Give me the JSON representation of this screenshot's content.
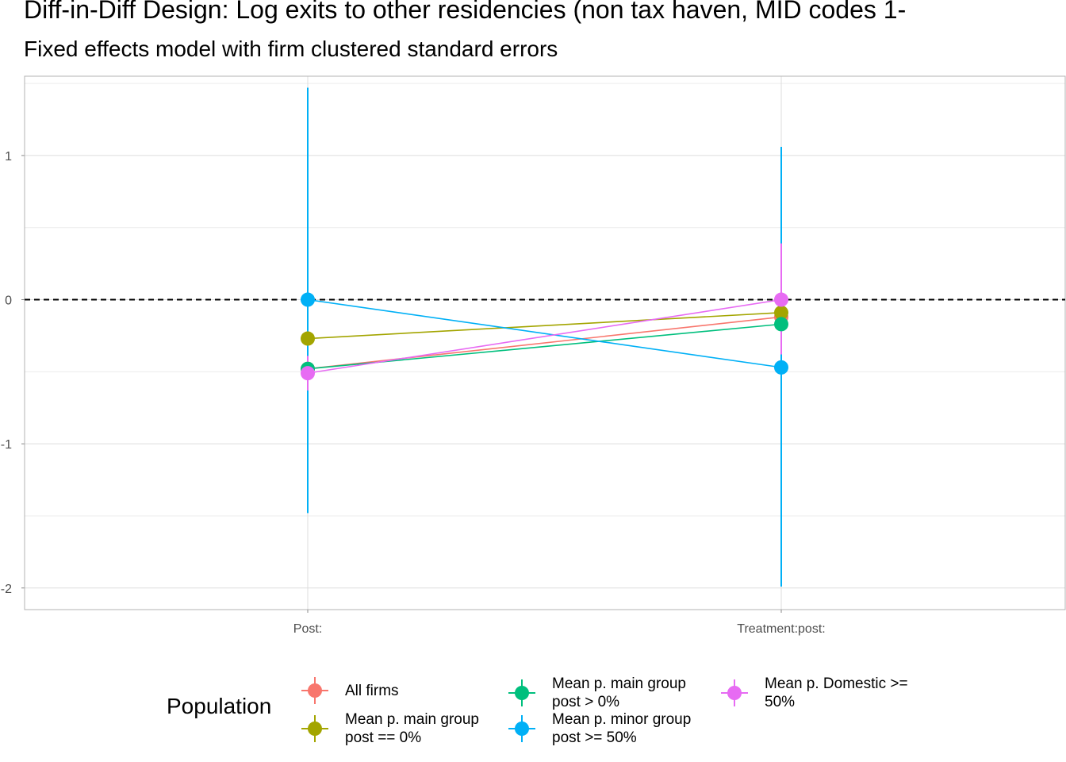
{
  "chart_data": {
    "type": "scatter",
    "title": "Diff-in-Diff Design: Log exits to other residencies (non tax haven, MID codes 1-",
    "subtitle": "Fixed effects model with firm clustered standard errors",
    "categories": [
      "Post:",
      "Treatment:post:"
    ],
    "y_ticks": [
      "-2",
      "-1",
      "0",
      "1"
    ],
    "ylim": [
      -2.15,
      1.55
    ],
    "reference_line": 0,
    "grid": true,
    "legend_placement": "bottom",
    "legend_title": "Population",
    "series": [
      {
        "name": "All firms",
        "color": "#F8766D",
        "values": [
          -0.48,
          -0.12
        ],
        "lower": [
          -0.62,
          -0.2
        ],
        "upper": [
          -0.34,
          -0.04
        ]
      },
      {
        "name": "Mean p. main group post == 0%",
        "color": "#A3A500",
        "values": [
          -0.27,
          -0.09
        ],
        "lower": [
          -0.33,
          -0.14
        ],
        "upper": [
          -0.21,
          -0.04
        ]
      },
      {
        "name": "Mean p. main group post > 0%",
        "color": "#00BF7D",
        "values": [
          -0.48,
          -0.17
        ],
        "lower": [
          -0.53,
          -0.22
        ],
        "upper": [
          -0.43,
          -0.12
        ]
      },
      {
        "name": "Mean p. minor group post >= 50%",
        "color": "#00B0F6",
        "values": [
          0.0,
          -0.47
        ],
        "lower": [
          -1.48,
          -1.99
        ],
        "upper": [
          1.47,
          1.06
        ]
      },
      {
        "name": "Mean p. Domestic >= 50%",
        "color": "#E76BF3",
        "values": [
          -0.51,
          0.0
        ],
        "lower": [
          -0.63,
          -0.38
        ],
        "upper": [
          -0.39,
          0.39
        ]
      }
    ]
  },
  "legend": {
    "title": "Population",
    "items": [
      {
        "line1": "All firms",
        "line2": "",
        "color": "#F8766D"
      },
      {
        "line1": "Mean p. main group",
        "line2": "post == 0%",
        "color": "#A3A500"
      },
      {
        "line1": "Mean p. main group",
        "line2": "post > 0%",
        "color": "#00BF7D"
      },
      {
        "line1": "Mean p. minor group",
        "line2": "post >= 50%",
        "color": "#00B0F6"
      },
      {
        "line1": "Mean p. Domestic >=",
        "line2": "50%",
        "color": "#E76BF3"
      }
    ]
  }
}
